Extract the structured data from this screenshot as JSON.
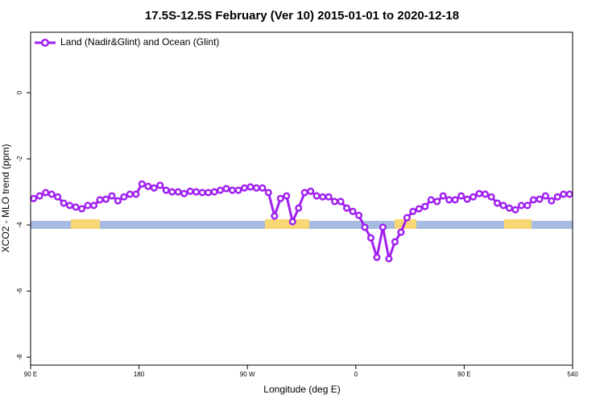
{
  "chart_data": {
    "type": "line",
    "title": "17.5S-12.5S February (Ver 10)   2015-01-01 to 2020-12-18",
    "x_label": "Longitude (deg E)",
    "y_label": "XCO2 - MLO trend (ppm)",
    "x": [
      92.5,
      97.5,
      102.5,
      107.5,
      112.5,
      117.5,
      122.5,
      127.5,
      132.5,
      137.5,
      142.5,
      147.5,
      152.5,
      157.5,
      162.5,
      167.5,
      172.5,
      177.5,
      182.5,
      187.5,
      192.5,
      197.5,
      202.5,
      207.5,
      212.5,
      217.5,
      222.5,
      227.5,
      232.5,
      237.5,
      242.5,
      247.5,
      252.5,
      257.5,
      262.5,
      267.5,
      272.5,
      277.5,
      282.5,
      287.5,
      292.5,
      297.5,
      302.5,
      307.5,
      312.5,
      317.5,
      322.5,
      327.5,
      332.5,
      337.5,
      342.5,
      347.5,
      352.5,
      357.5,
      362.5,
      367.5,
      372.5,
      377.5,
      382.5,
      387.5,
      392.5,
      397.5,
      402.5,
      407.5,
      412.5,
      417.5,
      422.5,
      427.5,
      432.5,
      437.5,
      442.5,
      447.5,
      452.5,
      457.5,
      462.5,
      467.5,
      472.5,
      477.5,
      482.5,
      487.5,
      492.5,
      497.5,
      502.5,
      507.5,
      512.5,
      517.5,
      522.5,
      527.5,
      532.5,
      537.5
    ],
    "series": [
      {
        "name": "Land (Nadir&Glint) and Ocean (Glint)",
        "color": "#a020f0",
        "values": [
          -3.2,
          -3.12,
          -3.02,
          -3.07,
          -3.15,
          -3.34,
          -3.41,
          -3.46,
          -3.51,
          -3.41,
          -3.41,
          -3.24,
          -3.22,
          -3.12,
          -3.27,
          -3.15,
          -3.07,
          -3.07,
          -2.76,
          -2.83,
          -2.88,
          -2.8,
          -2.95,
          -3.0,
          -3.0,
          -3.05,
          -2.98,
          -3.0,
          -3.02,
          -3.02,
          -3.0,
          -2.95,
          -2.9,
          -2.95,
          -2.95,
          -2.88,
          -2.85,
          -2.88,
          -2.88,
          -3.02,
          -3.73,
          -3.2,
          -3.12,
          -3.9,
          -3.49,
          -3.02,
          -2.98,
          -3.12,
          -3.15,
          -3.15,
          -3.29,
          -3.29,
          -3.49,
          -3.59,
          -3.71,
          -4.07,
          -4.39,
          -4.98,
          -4.07,
          -5.02,
          -4.51,
          -4.22,
          -3.78,
          -3.59,
          -3.51,
          -3.44,
          -3.24,
          -3.29,
          -3.12,
          -3.24,
          -3.24,
          -3.12,
          -3.22,
          -3.15,
          -3.05,
          -3.07,
          -3.15,
          -3.34,
          -3.41,
          -3.49,
          -3.54,
          -3.41,
          -3.41,
          -3.24,
          -3.22,
          -3.12,
          -3.27,
          -3.15,
          -3.07,
          -3.07
        ]
      }
    ],
    "xlim": [
      90,
      540
    ],
    "xticks": [
      {
        "value": 90,
        "label": "90 E"
      },
      180,
      {
        "value": 270,
        "label": "90 W"
      },
      {
        "value": 360,
        "label": "0"
      },
      {
        "value": 450,
        "label": "90 E"
      },
      540
    ],
    "ylim": [
      -8.24,
      1.83
    ],
    "yticks": [
      0,
      -2,
      -4,
      -6,
      -8
    ],
    "legend": "top-left",
    "grid": false
  }
}
